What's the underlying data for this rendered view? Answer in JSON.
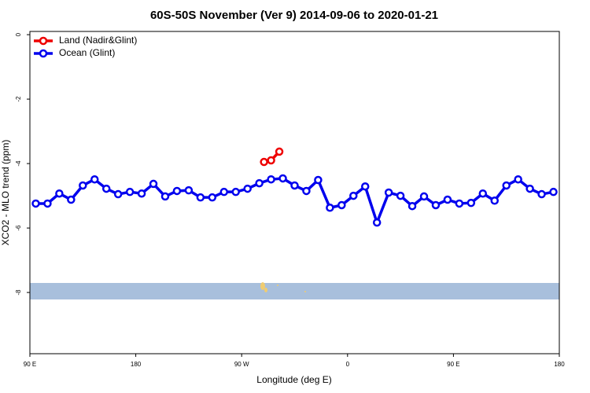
{
  "chart_data": {
    "type": "line",
    "title": "60S-50S November (Ver 9)   2014-09-06 to 2020-01-21",
    "xlabel": "Longitude (deg E)",
    "ylabel": "XCO2 - MLO trend (ppm)",
    "xlim": [
      90,
      540
    ],
    "ylim": [
      -9.9,
      0.1
    ],
    "xticks": [
      {
        "value": 90,
        "label": "90 E"
      },
      180,
      {
        "value": 270,
        "label": "90 W"
      },
      {
        "value": 360,
        "label": "0"
      },
      {
        "value": 450,
        "label": "90 E"
      },
      {
        "value": 540,
        "label": "180"
      }
    ],
    "yticks": [
      0,
      -2,
      -4,
      -6,
      -8
    ],
    "legend": "top-left",
    "series": [
      {
        "name": "Land (Nadir&Glint)",
        "color": "#ee0000",
        "x": [
          289,
          295,
          302
        ],
        "values": [
          -3.95,
          -3.9,
          -3.63
        ]
      },
      {
        "name": "Ocean (Glint)",
        "color": "#0000ee",
        "x": [
          95,
          105,
          115,
          125,
          135,
          145,
          155,
          165,
          175,
          185,
          195,
          205,
          215,
          225,
          235,
          245,
          255,
          265,
          275,
          285,
          295,
          305,
          315,
          325,
          335,
          345,
          355,
          365,
          375,
          385,
          395,
          405,
          415,
          425,
          435,
          445,
          455,
          465,
          475,
          485,
          495,
          505,
          515,
          525,
          535
        ],
        "values": [
          -5.24,
          -5.24,
          -4.93,
          -5.12,
          -4.68,
          -4.49,
          -4.78,
          -4.95,
          -4.88,
          -4.93,
          -4.63,
          -5.02,
          -4.85,
          -4.83,
          -5.05,
          -5.05,
          -4.88,
          -4.88,
          -4.78,
          -4.61,
          -4.49,
          -4.46,
          -4.68,
          -4.85,
          -4.51,
          -5.37,
          -5.29,
          -5.0,
          -4.71,
          -5.83,
          -4.9,
          -5.0,
          -5.32,
          -5.02,
          -5.29,
          -5.12,
          -5.24,
          -5.22,
          -4.93,
          -5.15,
          -4.68,
          -4.49,
          -4.78,
          -4.95,
          -4.88
        ]
      }
    ]
  }
}
